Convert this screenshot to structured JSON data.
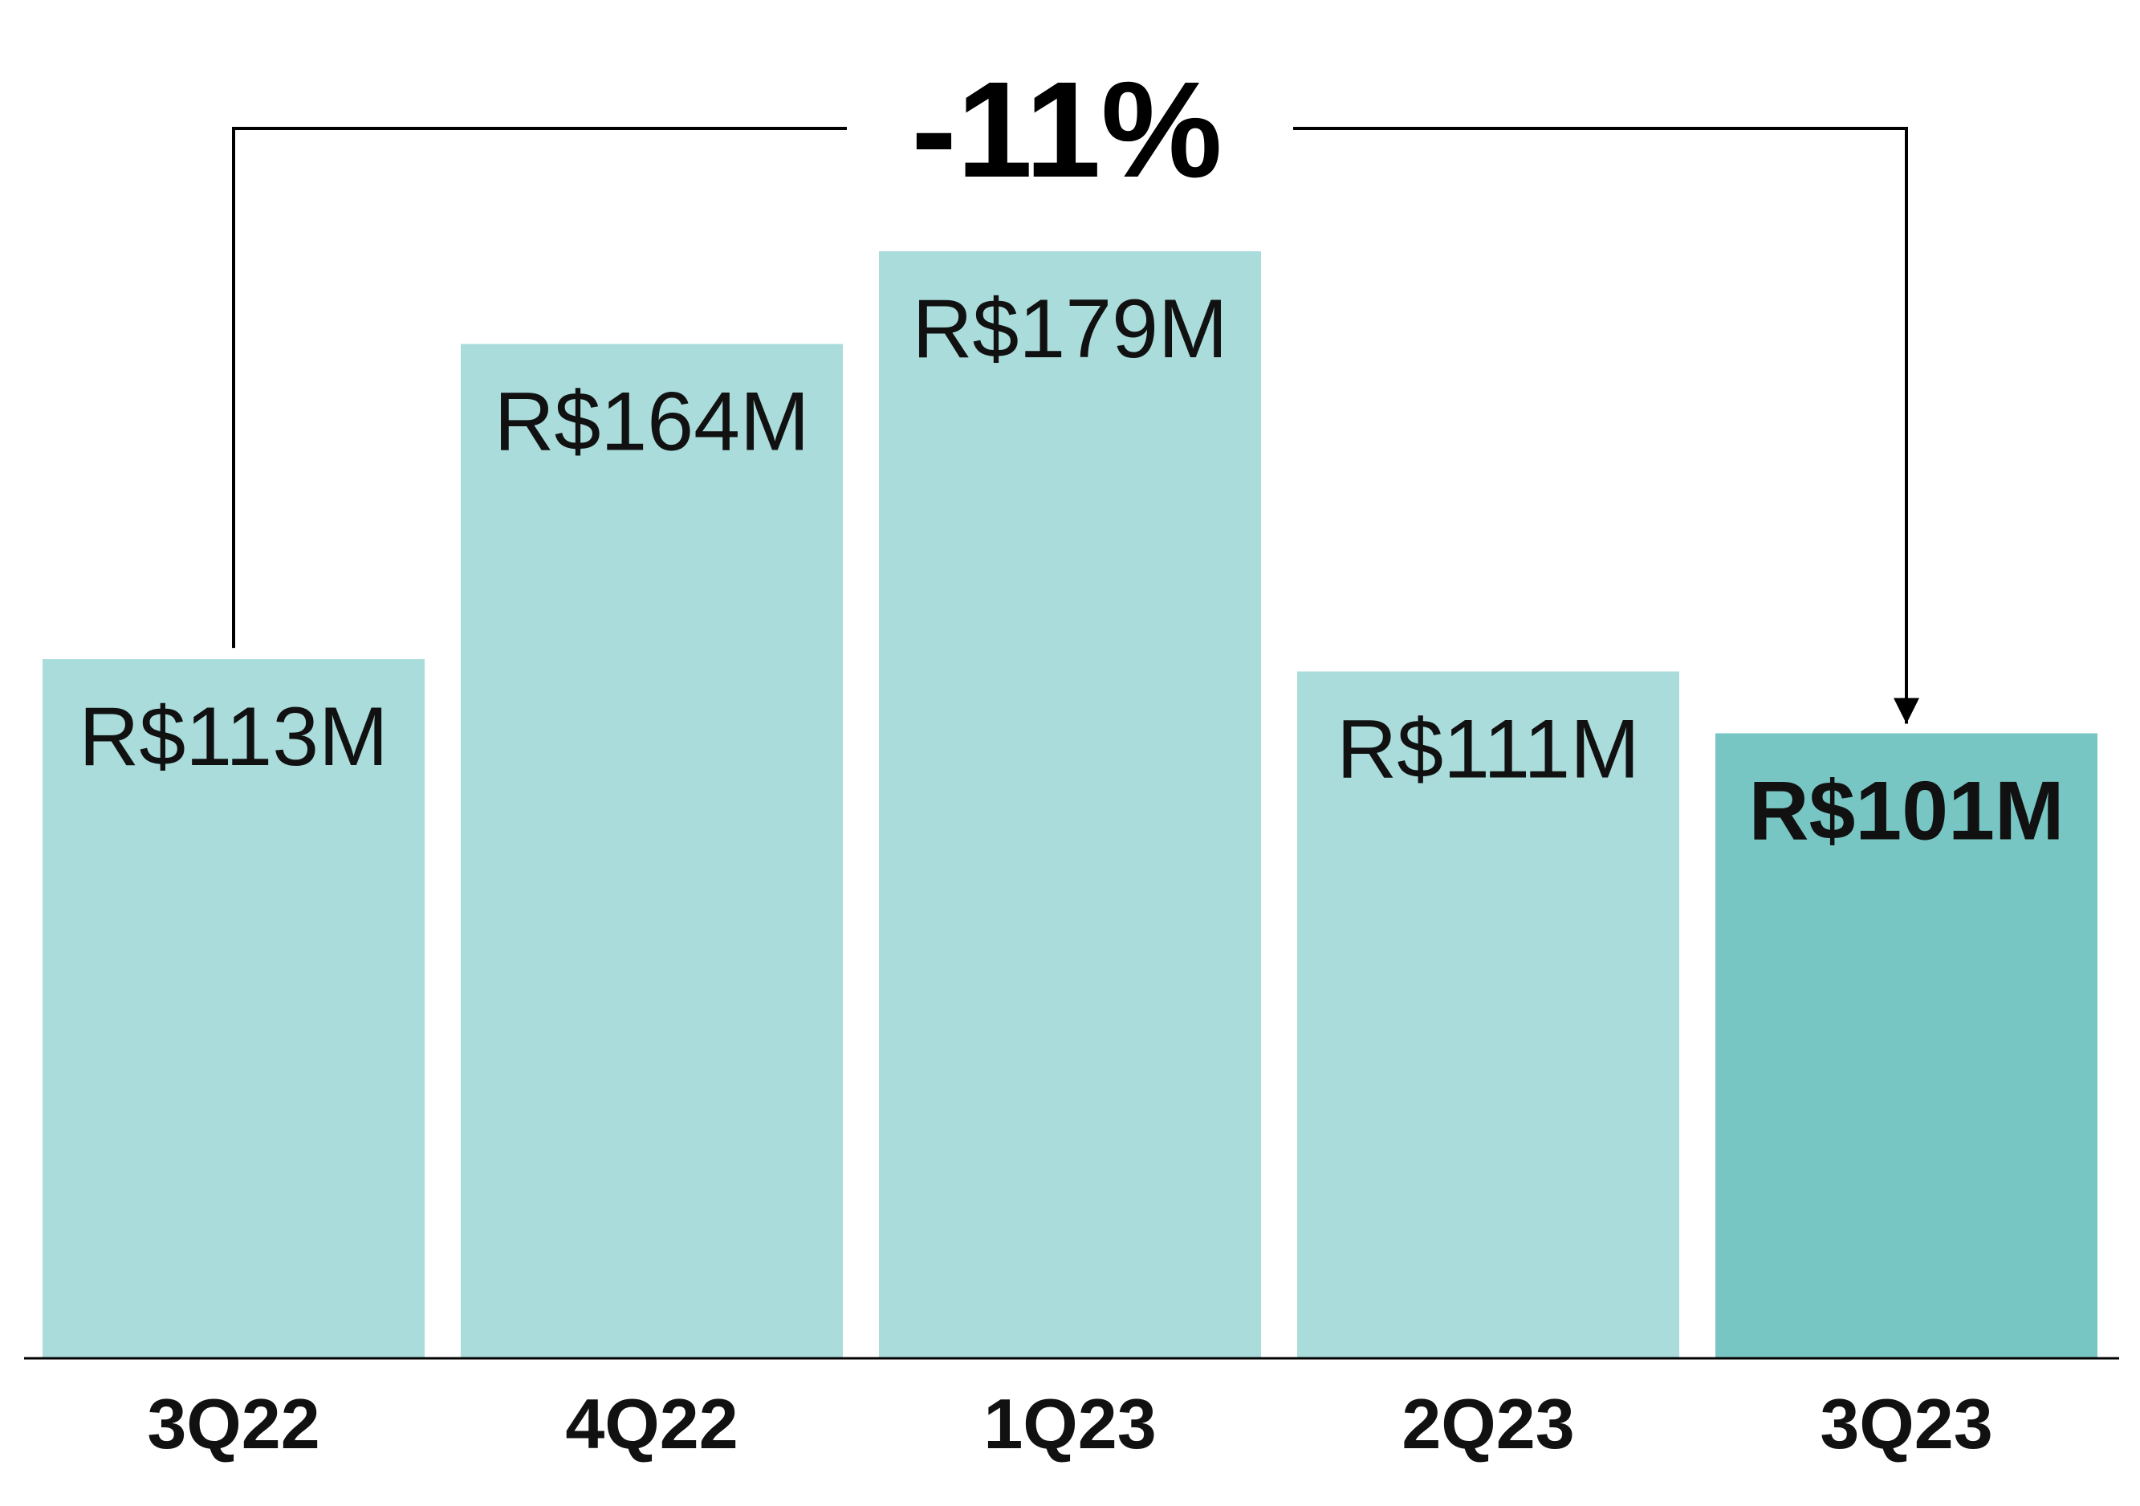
{
  "chart_data": {
    "type": "bar",
    "categories": [
      "3Q22",
      "4Q22",
      "1Q23",
      "2Q23",
      "3Q23"
    ],
    "values": [
      113,
      164,
      179,
      111,
      101
    ],
    "value_labels": [
      "R$113M",
      "R$164M",
      "R$179M",
      "R$111M",
      "R$101M"
    ],
    "highlight_index": 4,
    "colors": {
      "bar": "#a9dcdb",
      "highlight_bar": "#78c6c3",
      "axis": "#000000",
      "text": "#111111"
    },
    "ylim": [
      0,
      200
    ],
    "grid": false,
    "legend": "none",
    "annotation": {
      "label": "-11%",
      "from_category": "3Q22",
      "to_category": "3Q23"
    }
  }
}
